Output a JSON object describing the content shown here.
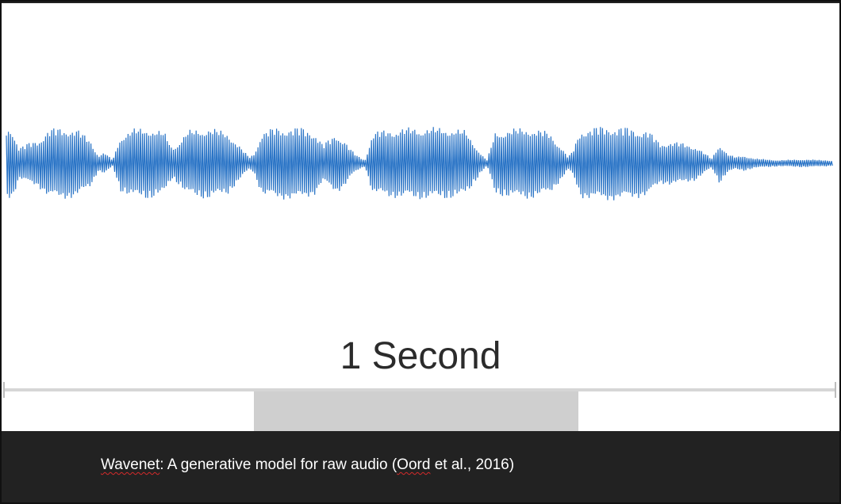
{
  "figure": {
    "duration_label": "1 Second",
    "waveform_color": "#2a74c6",
    "timeline_color": "#d6d6d6",
    "progress_fill": 0.39
  },
  "caption": {
    "model_name": "Wavenet",
    "rest": ": A generative model for raw audio (",
    "author": "Oord",
    "tail": " et al., 2016)"
  },
  "colors": {
    "background": "#222222",
    "figure_background": "#ffffff",
    "caption_text": "#ffffff",
    "spellcheck_underline": "#d42a2a"
  }
}
